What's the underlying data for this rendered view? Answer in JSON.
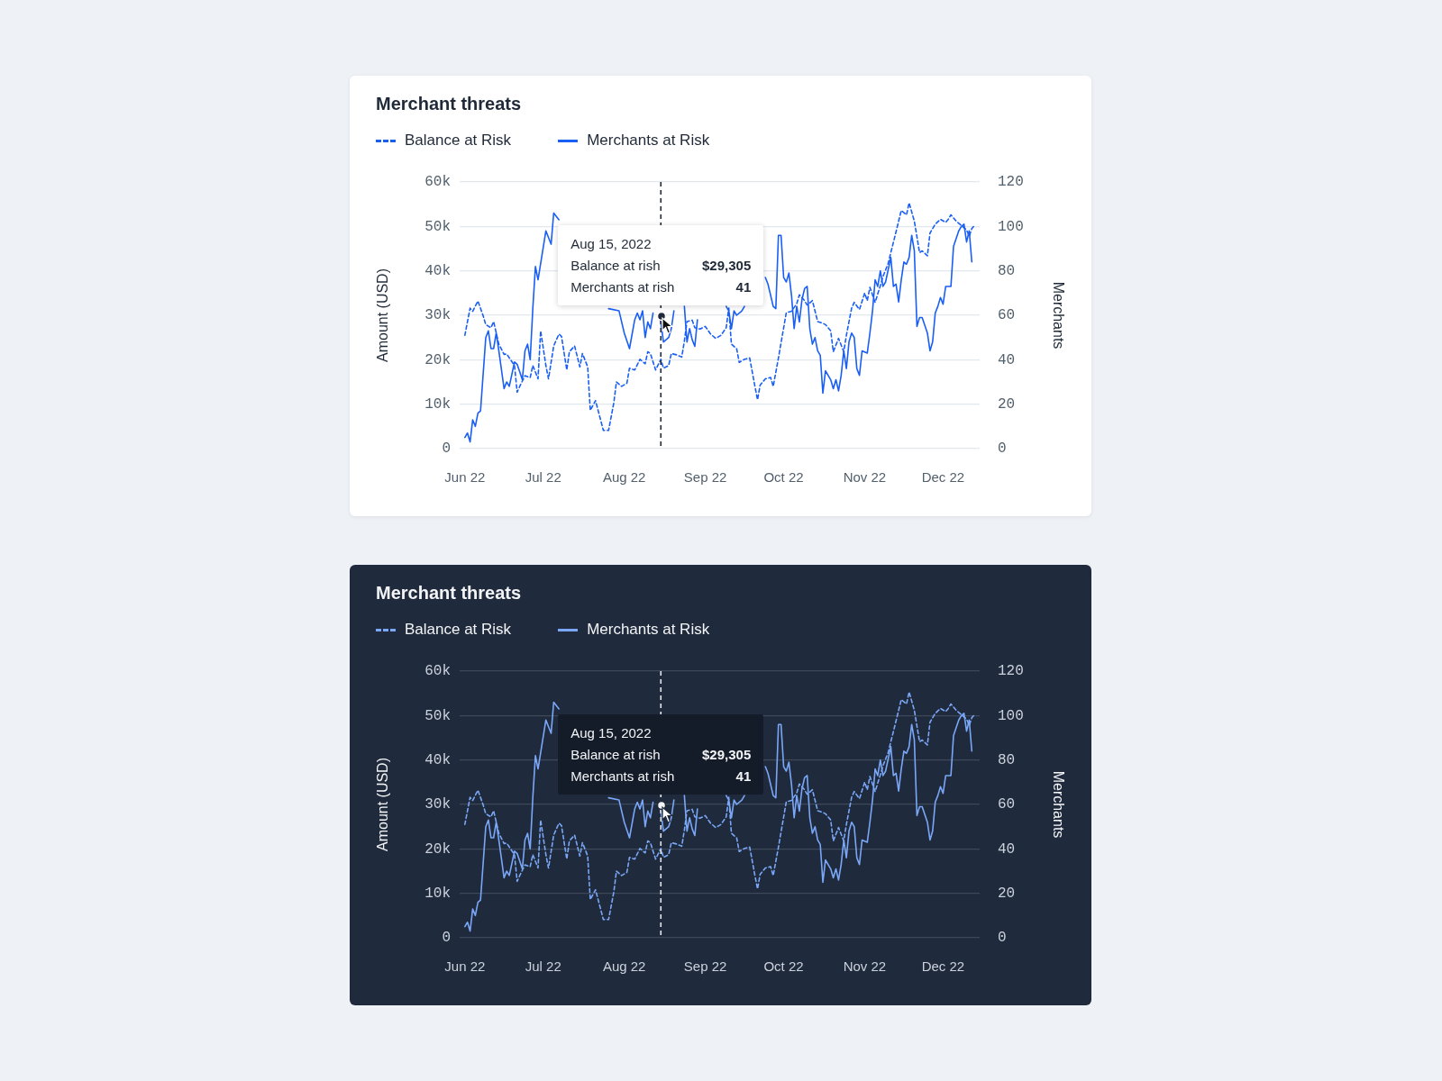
{
  "chart_data": [
    {
      "type": "line",
      "title": "Merchant threats",
      "ylabel": "Amount (USD)",
      "y2label": "Merchants",
      "legend": "top left",
      "grid": "y",
      "marker": "none",
      "xlim": [
        "2022-05-30",
        "2022-12-15"
      ],
      "xticks": [
        {
          "value": "2022-06-01",
          "label": "Jun 22"
        },
        {
          "value": "2022-07-01",
          "label": "Jul 22"
        },
        {
          "value": "2022-08-01",
          "label": "Aug 22"
        },
        {
          "value": "2022-09-01",
          "label": "Sep 22"
        },
        {
          "value": "2022-10-01",
          "label": "Oct 22"
        },
        {
          "value": "2022-11-01",
          "label": "Nov 22"
        },
        {
          "value": "2022-12-01",
          "label": "Dec 22"
        }
      ],
      "ylim": [
        0,
        60000
      ],
      "yticks": [
        {
          "value": 0,
          "label": "0"
        },
        {
          "value": 10000,
          "label": "10k"
        },
        {
          "value": 20000,
          "label": "20k"
        },
        {
          "value": 30000,
          "label": "30k"
        },
        {
          "value": 40000,
          "label": "40k"
        },
        {
          "value": 50000,
          "label": "50k"
        },
        {
          "value": 60000,
          "label": "60k"
        }
      ],
      "y2lim": [
        0,
        120
      ],
      "y2ticks": [
        0,
        20,
        40,
        60,
        80,
        100,
        120
      ],
      "ref_lines": [
        {
          "axis": "x",
          "value": "2022-08-15",
          "color": "#1f2937",
          "line_style": "dashed"
        }
      ],
      "annotations": [
        "Aug 15, 2022",
        "Balance at rish",
        "$29,305",
        "Merchants at rish",
        "41"
      ],
      "series": [
        {
          "name": "Balance at Risk",
          "color": "#1a5ff5",
          "line_style": "dashed",
          "x": [
            "2022-06-01",
            "2022-06-03",
            "2022-06-04",
            "2022-06-06",
            "2022-06-08",
            "2022-06-09",
            "2022-06-11",
            "2022-06-12",
            "2022-06-14",
            "2022-06-16",
            "2022-06-17",
            "2022-06-20",
            "2022-06-21",
            "2022-06-22",
            "2022-06-24",
            "2022-06-26",
            "2022-06-27",
            "2022-06-29",
            "2022-06-30",
            "2022-07-02",
            "2022-07-03",
            "2022-07-05",
            "2022-07-07",
            "2022-07-08",
            "2022-07-10",
            "2022-07-11",
            "2022-07-13",
            "2022-07-15",
            "2022-07-16",
            "2022-07-18",
            "2022-07-19",
            "2022-07-21",
            "2022-07-24",
            "2022-07-26",
            "2022-07-28",
            "2022-07-29",
            "2022-07-31",
            "2022-08-02",
            "2022-08-03",
            "2022-08-05",
            "2022-08-07",
            "2022-08-09",
            "2022-08-10",
            "2022-08-11",
            "2022-08-13",
            "2022-08-15",
            "2022-08-16",
            "2022-08-18",
            "2022-08-19",
            "2022-08-21",
            "2022-08-23",
            "2022-08-24",
            "2022-08-25",
            "2022-08-27",
            "2022-08-28",
            "2022-08-30",
            "2022-09-01",
            "2022-09-03",
            "2022-09-05",
            "2022-09-07",
            "2022-09-09",
            "2022-09-10",
            "2022-09-11",
            "2022-09-13",
            "2022-09-14",
            "2022-09-16",
            "2022-09-18",
            "2022-09-20",
            "2022-09-21",
            "2022-09-22",
            "2022-09-24",
            "2022-09-26",
            "2022-09-27",
            "2022-09-29",
            "2022-10-01",
            "2022-10-02",
            "2022-10-04",
            "2022-10-06",
            "2022-10-07",
            "2022-10-09",
            "2022-10-10",
            "2022-10-12",
            "2022-10-14",
            "2022-10-16",
            "2022-10-17",
            "2022-10-19",
            "2022-10-20",
            "2022-10-22",
            "2022-10-24",
            "2022-10-25",
            "2022-10-27",
            "2022-10-28",
            "2022-10-30",
            "2022-11-01",
            "2022-11-02",
            "2022-11-03",
            "2022-11-05",
            "2022-11-07",
            "2022-11-08",
            "2022-11-10",
            "2022-11-11",
            "2022-11-13",
            "2022-11-15",
            "2022-11-17",
            "2022-11-18",
            "2022-11-20",
            "2022-11-22",
            "2022-11-23",
            "2022-11-25",
            "2022-11-26",
            "2022-11-28",
            "2022-11-30",
            "2022-12-02",
            "2022-12-03",
            "2022-12-04",
            "2022-12-06",
            "2022-12-08",
            "2022-12-10",
            "2022-12-11",
            "2022-12-12",
            "2022-12-13"
          ],
          "values": [
            25500,
            31600,
            30900,
            33200,
            29900,
            27900,
            27200,
            28600,
            23500,
            21200,
            21300,
            18700,
            12700,
            14000,
            16400,
            16000,
            18700,
            15700,
            26500,
            18700,
            15700,
            23100,
            25800,
            25200,
            17700,
            21800,
            23100,
            18400,
            21400,
            18400,
            8600,
            10800,
            4100,
            4100,
            10300,
            15000,
            14000,
            14700,
            18100,
            17700,
            20100,
            19100,
            21800,
            21400,
            17700,
            20100,
            18100,
            18700,
            21400,
            21100,
            20600,
            24200,
            28600,
            28900,
            27200,
            26900,
            27500,
            25800,
            24800,
            25500,
            27200,
            31600,
            23500,
            22500,
            19400,
            20100,
            20400,
            14000,
            11000,
            14300,
            15700,
            16000,
            14000,
            20400,
            27200,
            30600,
            30900,
            32600,
            34600,
            33300,
            32300,
            33300,
            28600,
            28200,
            27900,
            26500,
            21800,
            24800,
            21800,
            25500,
            31600,
            32900,
            31300,
            35000,
            33300,
            36300,
            32900,
            36700,
            38700,
            41700,
            44100,
            48800,
            53600,
            52600,
            55300,
            51200,
            44100,
            44500,
            43400,
            48500,
            50500,
            51600,
            50900,
            51600,
            52600,
            51200,
            50200,
            49200,
            47800,
            49500,
            50200
          ]
        },
        {
          "name": "Merchants at Risk",
          "color": "#1a5ff5",
          "line_style": "solid",
          "axis": "y2",
          "x": [
            "2022-06-01",
            "2022-06-02",
            "2022-06-03",
            "2022-06-04",
            "2022-06-05",
            "2022-06-06",
            "2022-06-07",
            "2022-06-09",
            "2022-06-10",
            "2022-06-11",
            "2022-06-12",
            "2022-06-13",
            "2022-06-14",
            "2022-06-16",
            "2022-06-17",
            "2022-06-18",
            "2022-06-20",
            "2022-06-21",
            "2022-06-23",
            "2022-06-24",
            "2022-06-25",
            "2022-06-26",
            "2022-06-27",
            "2022-06-28",
            "2022-06-29",
            "2022-07-02",
            "2022-07-04",
            "2022-07-05",
            "2022-07-07",
            "2022-07-15",
            "2022-07-26",
            "2022-07-30",
            "2022-08-01",
            "2022-08-03",
            "2022-08-05",
            "2022-08-06",
            "2022-08-07",
            "2022-08-08",
            "2022-08-09",
            "2022-08-10",
            "2022-08-11",
            "2022-08-12",
            "2022-08-13",
            "2022-08-14",
            "2022-08-15",
            "2022-08-16",
            "2022-08-18",
            "2022-08-19",
            "2022-08-20",
            "2022-08-22",
            "2022-08-24",
            "2022-08-25",
            "2022-08-26",
            "2022-08-27",
            "2022-08-28",
            "2022-08-29",
            "2022-09-04",
            "2022-09-09",
            "2022-09-10",
            "2022-09-11",
            "2022-09-12",
            "2022-09-13",
            "2022-09-15",
            "2022-09-16",
            "2022-09-20",
            "2022-09-24",
            "2022-09-25",
            "2022-09-27",
            "2022-09-28",
            "2022-09-29",
            "2022-09-30",
            "2022-10-01",
            "2022-10-02",
            "2022-10-03",
            "2022-10-04",
            "2022-10-05",
            "2022-10-06",
            "2022-10-07",
            "2022-10-08",
            "2022-10-09",
            "2022-10-10",
            "2022-10-11",
            "2022-10-12",
            "2022-10-13",
            "2022-10-14",
            "2022-10-15",
            "2022-10-16",
            "2022-10-17",
            "2022-10-19",
            "2022-10-20",
            "2022-10-21",
            "2022-10-22",
            "2022-10-23",
            "2022-10-24",
            "2022-10-25",
            "2022-10-26",
            "2022-10-27",
            "2022-10-28",
            "2022-10-29",
            "2022-10-30",
            "2022-10-31",
            "2022-11-02",
            "2022-11-03",
            "2022-11-04",
            "2022-11-05",
            "2022-11-06",
            "2022-11-07",
            "2022-11-08",
            "2022-11-09",
            "2022-11-11",
            "2022-11-12",
            "2022-11-13",
            "2022-11-14",
            "2022-11-15",
            "2022-11-16",
            "2022-11-17",
            "2022-11-18",
            "2022-11-19",
            "2022-11-20",
            "2022-11-21",
            "2022-11-22",
            "2022-11-23",
            "2022-11-25",
            "2022-11-26",
            "2022-11-27",
            "2022-11-28",
            "2022-11-29",
            "2022-11-30",
            "2022-12-01",
            "2022-12-02",
            "2022-12-04",
            "2022-12-05",
            "2022-12-07",
            "2022-12-08",
            "2022-12-09",
            "2022-12-10",
            "2022-12-11",
            "2022-12-12"
          ],
          "values": [
            5,
            7,
            3,
            13,
            10,
            16,
            17,
            50,
            53,
            45,
            45,
            52,
            44,
            27,
            30,
            28,
            39,
            38,
            31,
            44,
            47,
            40,
            63,
            82,
            76,
            98,
            92,
            106,
            103,
            null,
            63,
            62,
            52,
            45,
            58,
            61,
            58,
            62,
            50,
            57,
            54,
            61,
            null,
            60,
            57,
            48,
            50,
            54,
            62,
            null,
            64,
            48,
            54,
            49,
            46,
            58,
            null,
            64,
            62,
            54,
            62,
            60,
            62,
            64,
            null,
            77,
            74,
            64,
            63,
            96,
            96,
            77,
            75,
            79,
            69,
            54,
            64,
            57,
            67,
            72,
            73,
            54,
            47,
            50,
            44,
            42,
            25,
            35,
            31,
            27,
            31,
            26,
            33,
            44,
            36,
            48,
            52,
            50,
            36,
            33,
            44,
            43,
            52,
            62,
            76,
            73,
            80,
            73,
            75,
            86,
            73,
            74,
            66,
            76,
            84,
            83,
            86,
            96,
            89,
            55,
            59,
            59,
            52,
            44,
            48,
            61,
            64,
            68,
            65,
            73,
            73,
            91,
            98,
            100,
            101,
            93,
            98,
            84
          ]
        }
      ]
    },
    {
      "type": "line",
      "title": "Merchant threats",
      "ylabel": "Amount (USD)",
      "y2label": "Merchants",
      "legend": "top left",
      "grid": "y",
      "marker": "none",
      "xlim": [
        "2022-05-30",
        "2022-12-15"
      ],
      "xticks": [
        {
          "value": "2022-06-01",
          "label": "Jun 22"
        },
        {
          "value": "2022-07-01",
          "label": "Jul 22"
        },
        {
          "value": "2022-08-01",
          "label": "Aug 22"
        },
        {
          "value": "2022-09-01",
          "label": "Sep 22"
        },
        {
          "value": "2022-10-01",
          "label": "Oct 22"
        },
        {
          "value": "2022-11-01",
          "label": "Nov 22"
        },
        {
          "value": "2022-12-01",
          "label": "Dec 22"
        }
      ],
      "ylim": [
        0,
        60000
      ],
      "yticks": [
        {
          "value": 0,
          "label": "0"
        },
        {
          "value": 10000,
          "label": "10k"
        },
        {
          "value": 20000,
          "label": "20k"
        },
        {
          "value": 30000,
          "label": "30k"
        },
        {
          "value": 40000,
          "label": "40k"
        },
        {
          "value": 50000,
          "label": "50k"
        },
        {
          "value": 60000,
          "label": "60k"
        }
      ],
      "y2lim": [
        0,
        120
      ],
      "y2ticks": [
        0,
        20,
        40,
        60,
        80,
        100,
        120
      ],
      "ref_lines": [
        {
          "axis": "x",
          "value": "2022-08-15",
          "color": "#e5e7eb",
          "line_style": "dashed"
        }
      ],
      "annotations": [
        "Aug 15, 2022",
        "Balance at rish",
        "$29,305",
        "Merchants at rish",
        "41"
      ],
      "series": [
        {
          "name": "Balance at Risk",
          "color": "#7aa7f7",
          "line_style": "dashed",
          "x": [
            "2022-06-01",
            "2022-06-03",
            "2022-06-04",
            "2022-06-06",
            "2022-06-08",
            "2022-06-09",
            "2022-06-11",
            "2022-06-12",
            "2022-06-14",
            "2022-06-16",
            "2022-06-17",
            "2022-06-20",
            "2022-06-21",
            "2022-06-22",
            "2022-06-24",
            "2022-06-26",
            "2022-06-27",
            "2022-06-29",
            "2022-06-30",
            "2022-07-02",
            "2022-07-03",
            "2022-07-05",
            "2022-07-07",
            "2022-07-08",
            "2022-07-10",
            "2022-07-11",
            "2022-07-13",
            "2022-07-15",
            "2022-07-16",
            "2022-07-18",
            "2022-07-19",
            "2022-07-21",
            "2022-07-24",
            "2022-07-26",
            "2022-07-28",
            "2022-07-29",
            "2022-07-31",
            "2022-08-02",
            "2022-08-03",
            "2022-08-05",
            "2022-08-07",
            "2022-08-09",
            "2022-08-10",
            "2022-08-11",
            "2022-08-13",
            "2022-08-15",
            "2022-08-16",
            "2022-08-18",
            "2022-08-19",
            "2022-08-21",
            "2022-08-23",
            "2022-08-24",
            "2022-08-25",
            "2022-08-27",
            "2022-08-28",
            "2022-08-30",
            "2022-09-01",
            "2022-09-03",
            "2022-09-05",
            "2022-09-07",
            "2022-09-09",
            "2022-09-10",
            "2022-09-11",
            "2022-09-13",
            "2022-09-14",
            "2022-09-16",
            "2022-09-18",
            "2022-09-20",
            "2022-09-21",
            "2022-09-22",
            "2022-09-24",
            "2022-09-26",
            "2022-09-27",
            "2022-09-29",
            "2022-10-01",
            "2022-10-02",
            "2022-10-04",
            "2022-10-06",
            "2022-10-07",
            "2022-10-09",
            "2022-10-10",
            "2022-10-12",
            "2022-10-14",
            "2022-10-16",
            "2022-10-17",
            "2022-10-19",
            "2022-10-20",
            "2022-10-22",
            "2022-10-24",
            "2022-10-25",
            "2022-10-27",
            "2022-10-28",
            "2022-10-30",
            "2022-11-01",
            "2022-11-02",
            "2022-11-03",
            "2022-11-05",
            "2022-11-07",
            "2022-11-08",
            "2022-11-10",
            "2022-11-11",
            "2022-11-13",
            "2022-11-15",
            "2022-11-17",
            "2022-11-18",
            "2022-11-20",
            "2022-11-22",
            "2022-11-23",
            "2022-11-25",
            "2022-11-26",
            "2022-11-28",
            "2022-11-30",
            "2022-12-02",
            "2022-12-03",
            "2022-12-04",
            "2022-12-06",
            "2022-12-08",
            "2022-12-10",
            "2022-12-11",
            "2022-12-12",
            "2022-12-13"
          ],
          "values": [
            25500,
            31600,
            30900,
            33200,
            29900,
            27900,
            27200,
            28600,
            23500,
            21200,
            21300,
            18700,
            12700,
            14000,
            16400,
            16000,
            18700,
            15700,
            26500,
            18700,
            15700,
            23100,
            25800,
            25200,
            17700,
            21800,
            23100,
            18400,
            21400,
            18400,
            8600,
            10800,
            4100,
            4100,
            10300,
            15000,
            14000,
            14700,
            18100,
            17700,
            20100,
            19100,
            21800,
            21400,
            17700,
            20100,
            18100,
            18700,
            21400,
            21100,
            20600,
            24200,
            28600,
            28900,
            27200,
            26900,
            27500,
            25800,
            24800,
            25500,
            27200,
            31600,
            23500,
            22500,
            19400,
            20100,
            20400,
            14000,
            11000,
            14300,
            15700,
            16000,
            14000,
            20400,
            27200,
            30600,
            30900,
            32600,
            34600,
            33300,
            32300,
            33300,
            28600,
            28200,
            27900,
            26500,
            21800,
            24800,
            21800,
            25500,
            31600,
            32900,
            31300,
            35000,
            33300,
            36300,
            32900,
            36700,
            38700,
            41700,
            44100,
            48800,
            53600,
            52600,
            55300,
            51200,
            44100,
            44500,
            43400,
            48500,
            50500,
            51600,
            50900,
            51600,
            52600,
            51200,
            50200,
            49200,
            47800,
            49500,
            50200
          ]
        },
        {
          "name": "Merchants at Risk",
          "color": "#7aa7f7",
          "line_style": "solid",
          "axis": "y2",
          "x": [
            "2022-06-01",
            "2022-06-02",
            "2022-06-03",
            "2022-06-04",
            "2022-06-05",
            "2022-06-06",
            "2022-06-07",
            "2022-06-09",
            "2022-06-10",
            "2022-06-11",
            "2022-06-12",
            "2022-06-13",
            "2022-06-14",
            "2022-06-16",
            "2022-06-17",
            "2022-06-18",
            "2022-06-20",
            "2022-06-21",
            "2022-06-23",
            "2022-06-24",
            "2022-06-25",
            "2022-06-26",
            "2022-06-27",
            "2022-06-28",
            "2022-06-29",
            "2022-07-02",
            "2022-07-04",
            "2022-07-05",
            "2022-07-07",
            "2022-07-15",
            "2022-07-26",
            "2022-07-30",
            "2022-08-01",
            "2022-08-03",
            "2022-08-05",
            "2022-08-06",
            "2022-08-07",
            "2022-08-08",
            "2022-08-09",
            "2022-08-10",
            "2022-08-11",
            "2022-08-12",
            "2022-08-13",
            "2022-08-14",
            "2022-08-15",
            "2022-08-16",
            "2022-08-18",
            "2022-08-19",
            "2022-08-20",
            "2022-08-22",
            "2022-08-24",
            "2022-08-25",
            "2022-08-26",
            "2022-08-27",
            "2022-08-28",
            "2022-08-29",
            "2022-09-04",
            "2022-09-09",
            "2022-09-10",
            "2022-09-11",
            "2022-09-12",
            "2022-09-13",
            "2022-09-15",
            "2022-09-16",
            "2022-09-20",
            "2022-09-24",
            "2022-09-25",
            "2022-09-27",
            "2022-09-28",
            "2022-09-29",
            "2022-09-30",
            "2022-10-01",
            "2022-10-02",
            "2022-10-03",
            "2022-10-04",
            "2022-10-05",
            "2022-10-06",
            "2022-10-07",
            "2022-10-08",
            "2022-10-09",
            "2022-10-10",
            "2022-10-11",
            "2022-10-12",
            "2022-10-13",
            "2022-10-14",
            "2022-10-15",
            "2022-10-16",
            "2022-10-17",
            "2022-10-19",
            "2022-10-20",
            "2022-10-21",
            "2022-10-22",
            "2022-10-23",
            "2022-10-24",
            "2022-10-25",
            "2022-10-26",
            "2022-10-27",
            "2022-10-28",
            "2022-10-29",
            "2022-10-30",
            "2022-10-31",
            "2022-11-02",
            "2022-11-03",
            "2022-11-04",
            "2022-11-05",
            "2022-11-06",
            "2022-11-07",
            "2022-11-08",
            "2022-11-09",
            "2022-11-11",
            "2022-11-12",
            "2022-11-13",
            "2022-11-14",
            "2022-11-15",
            "2022-11-16",
            "2022-11-17",
            "2022-11-18",
            "2022-11-19",
            "2022-11-20",
            "2022-11-21",
            "2022-11-22",
            "2022-11-23",
            "2022-11-25",
            "2022-11-26",
            "2022-11-27",
            "2022-11-28",
            "2022-11-29",
            "2022-11-30",
            "2022-12-01",
            "2022-12-02",
            "2022-12-04",
            "2022-12-05",
            "2022-12-07",
            "2022-12-08",
            "2022-12-09",
            "2022-12-10",
            "2022-12-11",
            "2022-12-12"
          ],
          "values": [
            5,
            7,
            3,
            13,
            10,
            16,
            17,
            50,
            53,
            45,
            45,
            52,
            44,
            27,
            30,
            28,
            39,
            38,
            31,
            44,
            47,
            40,
            63,
            82,
            76,
            98,
            92,
            106,
            103,
            null,
            63,
            62,
            52,
            45,
            58,
            61,
            58,
            62,
            50,
            57,
            54,
            61,
            null,
            60,
            57,
            48,
            50,
            54,
            62,
            null,
            64,
            48,
            54,
            49,
            46,
            58,
            null,
            64,
            62,
            54,
            62,
            60,
            62,
            64,
            null,
            77,
            74,
            64,
            63,
            96,
            96,
            77,
            75,
            79,
            69,
            54,
            64,
            57,
            67,
            72,
            73,
            54,
            47,
            50,
            44,
            42,
            25,
            35,
            31,
            27,
            31,
            26,
            33,
            44,
            36,
            48,
            52,
            50,
            36,
            33,
            44,
            43,
            52,
            62,
            76,
            73,
            80,
            73,
            75,
            86,
            73,
            74,
            66,
            76,
            84,
            83,
            86,
            96,
            89,
            55,
            59,
            59,
            52,
            44,
            48,
            61,
            64,
            68,
            65,
            73,
            73,
            91,
            98,
            100,
            101,
            93,
            98,
            84
          ]
        }
      ]
    }
  ]
}
